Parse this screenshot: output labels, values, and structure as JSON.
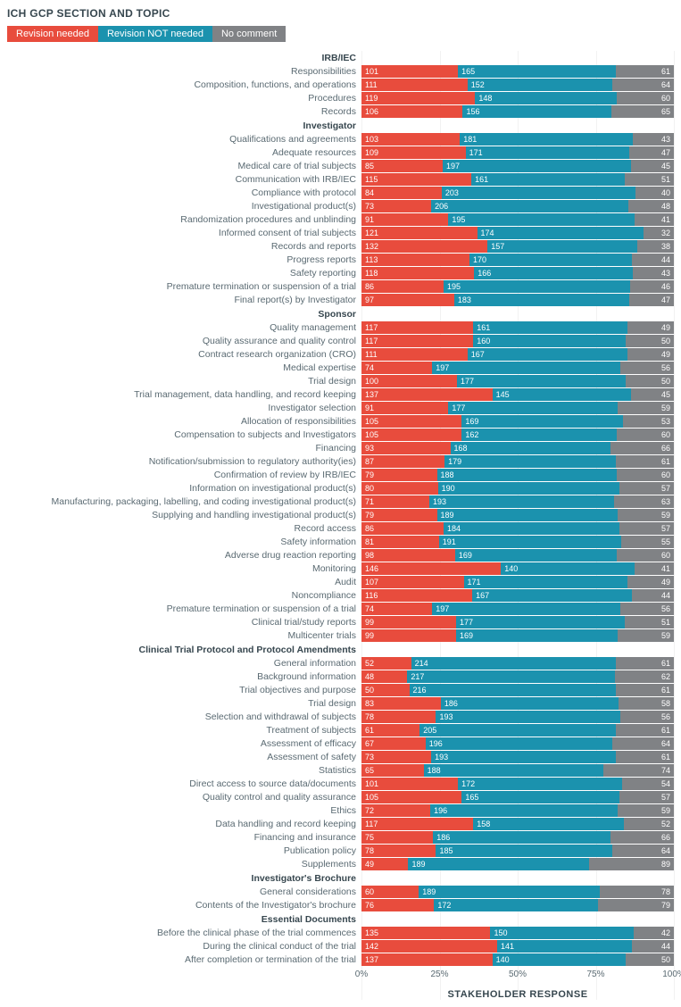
{
  "title": "ICH GCP SECTION AND TOPIC",
  "xlabel": "STAKEHOLDER RESPONSE",
  "legend": [
    {
      "label": "Revision needed",
      "color": "#e84c3d"
    },
    {
      "label": "Revision NOT needed",
      "color": "#1b92ae"
    },
    {
      "label": "No comment",
      "color": "#808285"
    }
  ],
  "colors": {
    "revision": "#e84c3d",
    "no_revision": "#1b92ae",
    "no_comment": "#808285",
    "text": "#5a6a72",
    "header": "#37474f",
    "background": "#ffffff"
  },
  "axis": {
    "ticks": [
      "0%",
      "25%",
      "50%",
      "75%",
      "100%"
    ],
    "positions": [
      0,
      25,
      50,
      75,
      100
    ]
  },
  "sections": [
    {
      "name": "IRB/IEC",
      "rows": [
        {
          "label": "Responsibilities",
          "v": [
            101,
            165,
            61
          ]
        },
        {
          "label": "Composition, functions, and operations",
          "v": [
            111,
            152,
            64
          ]
        },
        {
          "label": "Procedures",
          "v": [
            119,
            148,
            60
          ]
        },
        {
          "label": "Records",
          "v": [
            106,
            156,
            65
          ]
        }
      ]
    },
    {
      "name": "Investigator",
      "rows": [
        {
          "label": "Qualifications and agreements",
          "v": [
            103,
            181,
            43
          ]
        },
        {
          "label": "Adequate resources",
          "v": [
            109,
            171,
            47
          ]
        },
        {
          "label": "Medical care of trial subjects",
          "v": [
            85,
            197,
            45
          ]
        },
        {
          "label": "Communication with IRB/IEC",
          "v": [
            115,
            161,
            51
          ]
        },
        {
          "label": "Compliance with protocol",
          "v": [
            84,
            203,
            40
          ]
        },
        {
          "label": "Investigational product(s)",
          "v": [
            73,
            206,
            48
          ]
        },
        {
          "label": "Randomization procedures and unblinding",
          "v": [
            91,
            195,
            41
          ]
        },
        {
          "label": "Informed consent of trial subjects",
          "v": [
            121,
            174,
            32
          ]
        },
        {
          "label": "Records and reports",
          "v": [
            132,
            157,
            38
          ]
        },
        {
          "label": "Progress reports",
          "v": [
            113,
            170,
            44
          ]
        },
        {
          "label": "Safety reporting",
          "v": [
            118,
            166,
            43
          ]
        },
        {
          "label": "Premature termination or suspension of a trial",
          "v": [
            86,
            195,
            46
          ]
        },
        {
          "label": "Final report(s) by Investigator",
          "v": [
            97,
            183,
            47
          ]
        }
      ]
    },
    {
      "name": "Sponsor",
      "rows": [
        {
          "label": "Quality management",
          "v": [
            117,
            161,
            49
          ]
        },
        {
          "label": "Quality assurance and quality control",
          "v": [
            117,
            160,
            50
          ]
        },
        {
          "label": "Contract research organization (CRO)",
          "v": [
            111,
            167,
            49
          ]
        },
        {
          "label": "Medical expertise",
          "v": [
            74,
            197,
            56
          ]
        },
        {
          "label": "Trial design",
          "v": [
            100,
            177,
            50
          ]
        },
        {
          "label": "Trial management, data handling, and record keeping",
          "v": [
            137,
            145,
            45
          ]
        },
        {
          "label": "Investigator selection",
          "v": [
            91,
            177,
            59
          ]
        },
        {
          "label": "Allocation of responsibilities",
          "v": [
            105,
            169,
            53
          ]
        },
        {
          "label": "Compensation to subjects and Investigators",
          "v": [
            105,
            162,
            60
          ]
        },
        {
          "label": "Financing",
          "v": [
            93,
            168,
            66
          ]
        },
        {
          "label": "Notification/submission to regulatory authority(ies)",
          "v": [
            87,
            179,
            61
          ]
        },
        {
          "label": "Confirmation of review by IRB/IEC",
          "v": [
            79,
            188,
            60
          ]
        },
        {
          "label": "Information on investigational product(s)",
          "v": [
            80,
            190,
            57
          ]
        },
        {
          "label": "Manufacturing, packaging, labelling, and coding investigational product(s)",
          "v": [
            71,
            193,
            63
          ]
        },
        {
          "label": "Supplying and handling investigational product(s)",
          "v": [
            79,
            189,
            59
          ]
        },
        {
          "label": "Record access",
          "v": [
            86,
            184,
            57
          ]
        },
        {
          "label": "Safety information",
          "v": [
            81,
            191,
            55
          ]
        },
        {
          "label": "Adverse drug reaction reporting",
          "v": [
            98,
            169,
            60
          ]
        },
        {
          "label": "Monitoring",
          "v": [
            146,
            140,
            41
          ]
        },
        {
          "label": "Audit",
          "v": [
            107,
            171,
            49
          ]
        },
        {
          "label": "Noncompliance",
          "v": [
            116,
            167,
            44
          ]
        },
        {
          "label": "Premature termination or suspension of a trial",
          "v": [
            74,
            197,
            56
          ]
        },
        {
          "label": "Clinical trial/study reports",
          "v": [
            99,
            177,
            51
          ]
        },
        {
          "label": "Multicenter trials",
          "v": [
            99,
            169,
            59
          ]
        }
      ]
    },
    {
      "name": "Clinical Trial Protocol and Protocol Amendments",
      "rows": [
        {
          "label": "General information",
          "v": [
            52,
            214,
            61
          ]
        },
        {
          "label": "Background information",
          "v": [
            48,
            217,
            62
          ]
        },
        {
          "label": "Trial objectives and purpose",
          "v": [
            50,
            216,
            61
          ]
        },
        {
          "label": "Trial design",
          "v": [
            83,
            186,
            58
          ]
        },
        {
          "label": "Selection and withdrawal of subjects",
          "v": [
            78,
            193,
            56
          ]
        },
        {
          "label": "Treatment of subjects",
          "v": [
            61,
            205,
            61
          ]
        },
        {
          "label": "Assessment of efficacy",
          "v": [
            67,
            196,
            64
          ]
        },
        {
          "label": "Assessment of safety",
          "v": [
            73,
            193,
            61
          ]
        },
        {
          "label": "Statistics",
          "v": [
            65,
            188,
            74
          ]
        },
        {
          "label": "Direct access to source data/documents",
          "v": [
            101,
            172,
            54
          ]
        },
        {
          "label": "Quality control and quality assurance",
          "v": [
            105,
            165,
            57
          ]
        },
        {
          "label": "Ethics",
          "v": [
            72,
            196,
            59
          ]
        },
        {
          "label": "Data handling and record keeping",
          "v": [
            117,
            158,
            52
          ]
        },
        {
          "label": "Financing and insurance",
          "v": [
            75,
            186,
            66
          ]
        },
        {
          "label": "Publication policy",
          "v": [
            78,
            185,
            64
          ]
        },
        {
          "label": "Supplements",
          "v": [
            49,
            189,
            89
          ]
        }
      ]
    },
    {
      "name": "Investigator's Brochure",
      "rows": [
        {
          "label": "General considerations",
          "v": [
            60,
            189,
            78
          ]
        },
        {
          "label": "Contents of the Investigator's brochure",
          "v": [
            76,
            172,
            79
          ]
        }
      ]
    },
    {
      "name": "Essential Documents",
      "rows": [
        {
          "label": "Before the clinical phase of the trial commences",
          "v": [
            135,
            150,
            42
          ]
        },
        {
          "label": "During the clinical conduct of the trial",
          "v": [
            142,
            141,
            44
          ]
        },
        {
          "label": "After completion or termination of the trial",
          "v": [
            137,
            140,
            50
          ]
        }
      ]
    }
  ]
}
